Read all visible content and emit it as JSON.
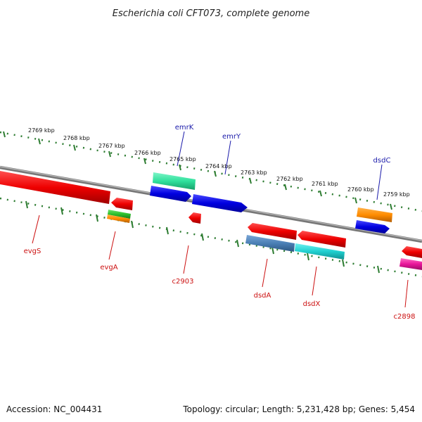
{
  "title": "Escherichia coli CFT073, complete genome",
  "footer": {
    "accession": "Accession: NC_004431",
    "summary": "Topology: circular; Length: 5,231,428 bp; Genes: 5,454"
  },
  "ruler_upper": {
    "labels": [
      "2769 kbp",
      "2768 kbp",
      "2767 kbp",
      "2766 kbp",
      "2765 kbp",
      "2764 kbp",
      "2763 kbp",
      "2762 kbp",
      "2761 kbp",
      "2760 kbp",
      "2759 kbp"
    ]
  },
  "colors": {
    "backbone": "#888888",
    "ruler": "#2e7d32",
    "forward_label": "#1a1aaa",
    "reverse_label": "#cc1111"
  },
  "genes": [
    {
      "name": "emrK",
      "strand": "forward",
      "color": "#33e0a0"
    },
    {
      "name": "emrY",
      "strand": "forward",
      "color": "#1010e0"
    },
    {
      "name": "dsdC",
      "strand": "forward",
      "color": "#ff8c00"
    },
    {
      "name": "evgS",
      "strand": "reverse",
      "color": "#ee1111"
    },
    {
      "name": "evgA",
      "strand": "reverse",
      "color": "#ee1111"
    },
    {
      "name": "c2903",
      "strand": "reverse",
      "color": "#ee1111"
    },
    {
      "name": "dsdA",
      "strand": "reverse",
      "color": "#ee1111"
    },
    {
      "name": "dsdX",
      "strand": "reverse",
      "color": "#ee1111"
    },
    {
      "name": "c2898",
      "strand": "reverse",
      "color": "#ee1111"
    }
  ]
}
